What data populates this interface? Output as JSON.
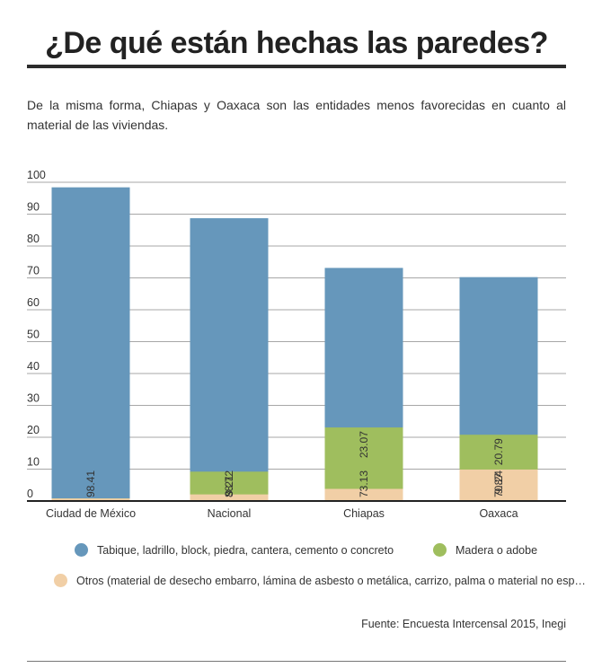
{
  "header": {
    "title": "¿De qué están hechas las paredes?",
    "subtitle": "De la misma forma, Chiapas y Oaxaca son las entidades menos favorecidas en cuanto al material de las viviendas."
  },
  "chart_data": {
    "type": "bar",
    "stacked": true,
    "categories": [
      "Ciudad de México",
      "Nacional",
      "Chiapas",
      "Oaxaca"
    ],
    "series": [
      {
        "name": "Tabique, ladrillo, block, piedra, cantera, cemento o concreto",
        "color": "#6697bb",
        "values": [
          98.41,
          88.72,
          73.13,
          70.24
        ],
        "labels": [
          "98.41",
          "88.72",
          "73.13",
          "70.24"
        ]
      },
      {
        "name": "Madera o adobe",
        "color": "#9fbe5e",
        "values": [
          0.8,
          9.21,
          23.07,
          20.79
        ],
        "labels": [
          "",
          "9.21",
          "23.07",
          "20.79"
        ]
      },
      {
        "name": "Otros (material de desecho embarro, lámina de asbesto o metálica, carrizo, palma o material no esp…",
        "color": "#f1cfa6",
        "values": [
          0.8,
          2.07,
          3.8,
          9.87
        ],
        "labels": [
          "",
          "",
          "",
          "9.87"
        ]
      }
    ],
    "yticks": [
      "0",
      "10",
      "20",
      "30",
      "40",
      "50",
      "60",
      "70",
      "80",
      "90",
      "100"
    ],
    "ylim": [
      0,
      100
    ],
    "grid": true,
    "legend_position": "bottom"
  },
  "source": "Fuente: Encuesta Intercensal 2015, Inegi"
}
